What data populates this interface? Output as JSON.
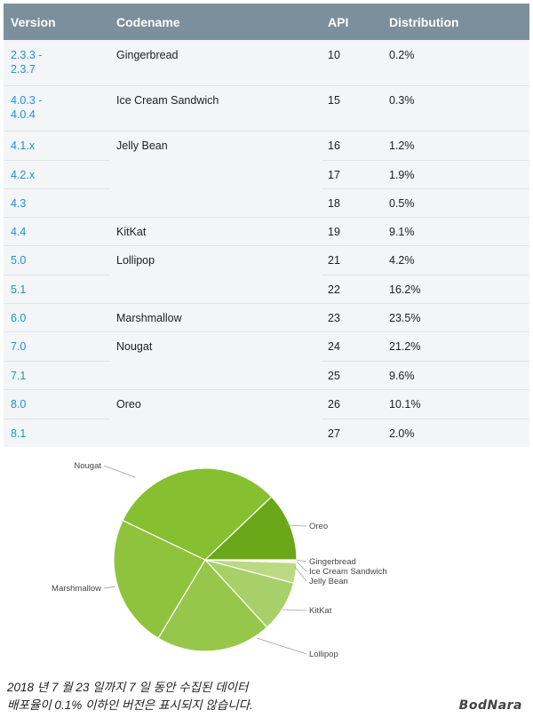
{
  "table": {
    "headers": [
      "Version",
      "Codename",
      "API",
      "Distribution"
    ],
    "rows": [
      {
        "version": "2.3.3 -\n2.3.7",
        "codename": "Gingerbread",
        "api": "10",
        "distribution": "0.2%"
      },
      {
        "version": "4.0.3 -\n4.0.4",
        "codename": "Ice Cream Sandwich",
        "api": "15",
        "distribution": "0.3%"
      },
      {
        "version": "4.1.x",
        "codename": "Jelly Bean",
        "api": "16",
        "distribution": "1.2%"
      },
      {
        "version": "4.2.x",
        "codename": "",
        "api": "17",
        "distribution": "1.9%"
      },
      {
        "version": "4.3",
        "codename": "",
        "api": "18",
        "distribution": "0.5%"
      },
      {
        "version": "4.4",
        "codename": "KitKat",
        "api": "19",
        "distribution": "9.1%"
      },
      {
        "version": "5.0",
        "codename": "Lollipop",
        "api": "21",
        "distribution": "4.2%"
      },
      {
        "version": "5.1",
        "codename": "",
        "api": "22",
        "distribution": "16.2%"
      },
      {
        "version": "6.0",
        "codename": "Marshmallow",
        "api": "23",
        "distribution": "23.5%"
      },
      {
        "version": "7.0",
        "codename": "Nougat",
        "api": "24",
        "distribution": "21.2%"
      },
      {
        "version": "7.1",
        "codename": "",
        "api": "25",
        "distribution": "9.6%"
      },
      {
        "version": "8.0",
        "codename": "Oreo",
        "api": "26",
        "distribution": "10.1%"
      },
      {
        "version": "8.1",
        "codename": "",
        "api": "27",
        "distribution": "2.0%"
      }
    ]
  },
  "chart_data": {
    "type": "pie",
    "slices": [
      {
        "label": "Oreo",
        "value": 12.1,
        "color": "#6aa719"
      },
      {
        "label": "Gingerbread",
        "value": 0.2,
        "color": "#dfe9c7"
      },
      {
        "label": "Ice Cream Sandwich",
        "value": 0.3,
        "color": "#d4e5ae"
      },
      {
        "label": "Jelly Bean",
        "value": 3.6,
        "color": "#bcd982"
      },
      {
        "label": "KitKat",
        "value": 9.1,
        "color": "#a7d168"
      },
      {
        "label": "Lollipop",
        "value": 20.4,
        "color": "#97c74a"
      },
      {
        "label": "Marshmallow",
        "value": 23.5,
        "color": "#8fc33d"
      },
      {
        "label": "Nougat",
        "value": 30.8,
        "color": "#86bf2f"
      }
    ]
  },
  "notes": [
    "2018 년 7 월 23 일까지 7 일 동안 수집된 데이터",
    "배포율이 0.1% 이하인 버전은 표시되지 않습니다."
  ],
  "brand": "BodNara"
}
